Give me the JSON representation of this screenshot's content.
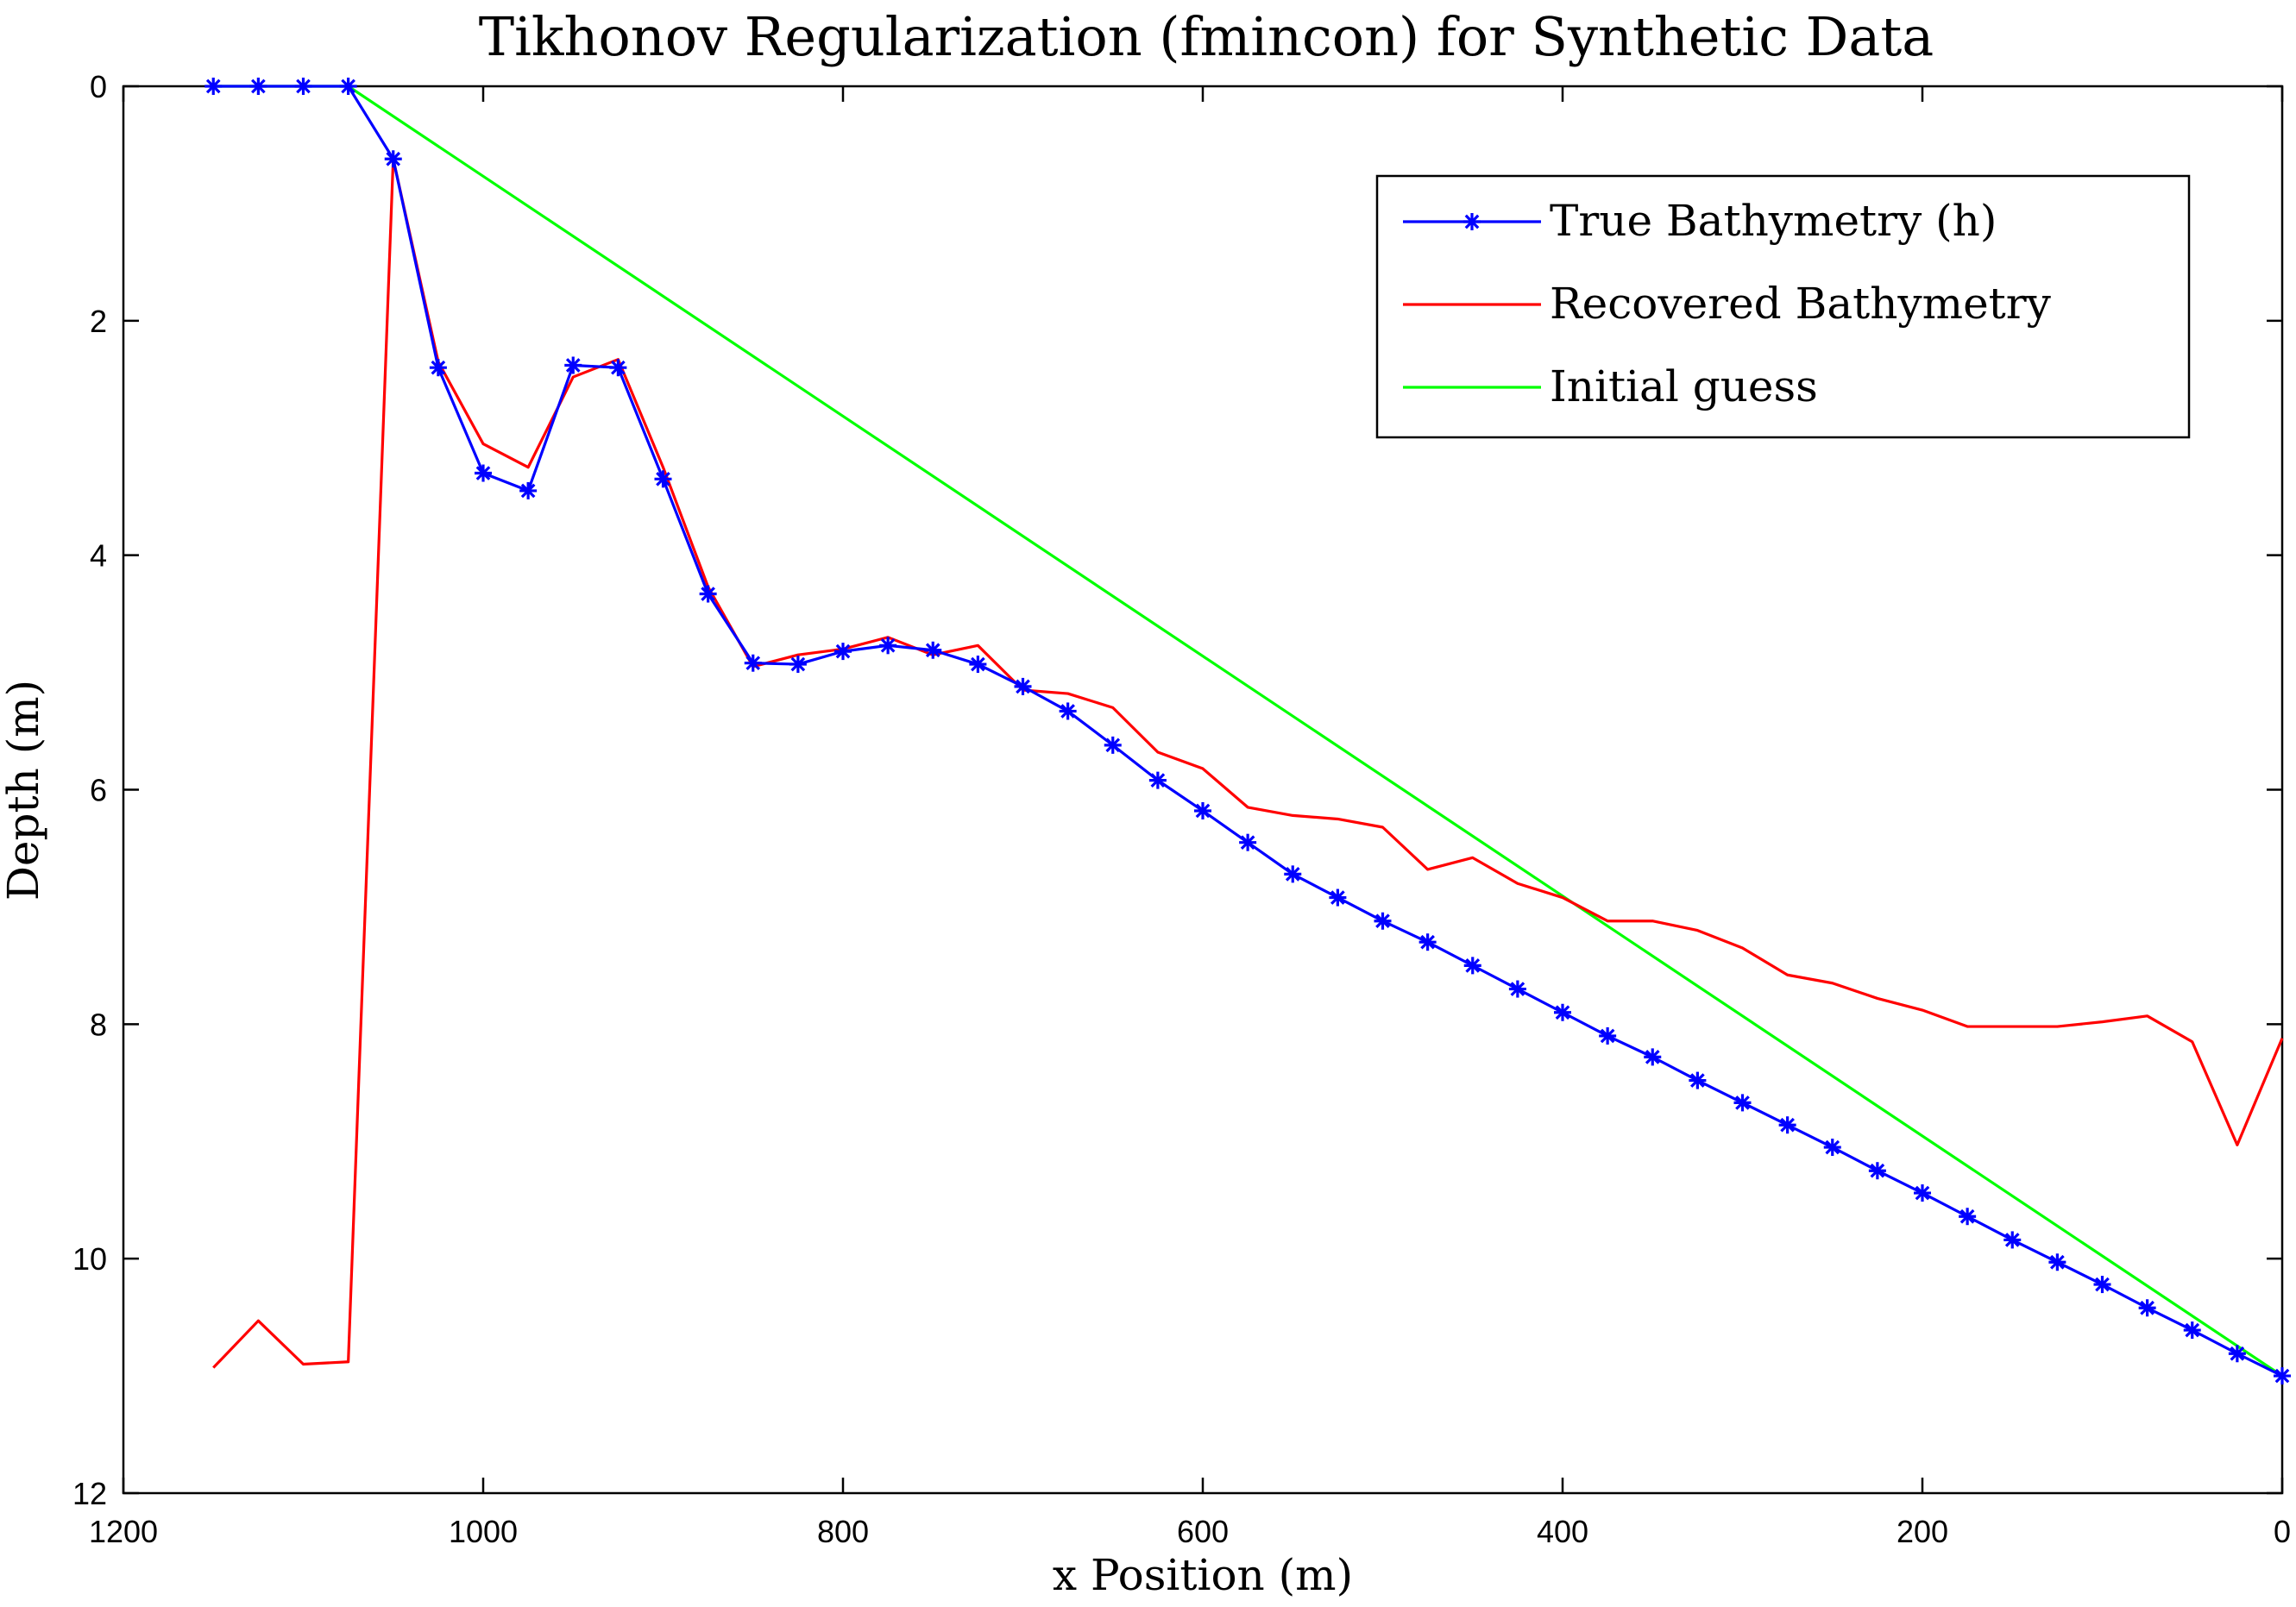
{
  "chart_data": {
    "type": "line",
    "title": "Tikhonov Regularization (fmincon) for Synthetic Data",
    "xlabel": "x Position (m)",
    "ylabel": "Depth (m)",
    "xlim": [
      0,
      1200
    ],
    "x_reversed": true,
    "ylim": [
      0,
      12
    ],
    "y_reversed": true,
    "xticks": [
      1200,
      1000,
      800,
      600,
      400,
      200,
      0
    ],
    "yticks": [
      0,
      2,
      4,
      6,
      8,
      10,
      12
    ],
    "grid": false,
    "legend_position": "top-right",
    "series": [
      {
        "name": "True Bathymetry (h)",
        "color": "#0000ff",
        "marker": "asterisk",
        "x": [
          1150,
          1125,
          1100,
          1075,
          1050,
          1025,
          1000,
          975,
          950,
          925,
          900,
          875,
          850,
          825,
          800,
          775,
          750,
          725,
          700,
          675,
          650,
          625,
          600,
          575,
          550,
          525,
          500,
          475,
          450,
          425,
          400,
          375,
          350,
          325,
          300,
          275,
          250,
          225,
          200,
          175,
          150,
          125,
          100,
          75,
          50,
          25,
          0
        ],
        "y": [
          0,
          0,
          0,
          0,
          0.62,
          2.4,
          3.3,
          3.45,
          2.38,
          2.4,
          3.35,
          4.33,
          4.92,
          4.93,
          4.82,
          4.77,
          4.81,
          4.93,
          5.12,
          5.33,
          5.62,
          5.92,
          6.18,
          6.45,
          6.72,
          6.92,
          7.12,
          7.3,
          7.5,
          7.7,
          7.9,
          8.1,
          8.28,
          8.48,
          8.67,
          8.86,
          9.05,
          9.25,
          9.44,
          9.64,
          9.84,
          10.03,
          10.22,
          10.42,
          10.61,
          10.81,
          11.0
        ]
      },
      {
        "name": "Recovered Bathymetry",
        "color": "#ff0000",
        "marker": "none",
        "x": [
          1150,
          1125,
          1100,
          1075,
          1050,
          1025,
          1000,
          975,
          950,
          925,
          900,
          875,
          850,
          825,
          800,
          775,
          750,
          725,
          700,
          675,
          650,
          625,
          600,
          575,
          550,
          525,
          500,
          475,
          450,
          425,
          400,
          375,
          350,
          325,
          300,
          275,
          250,
          225,
          200,
          175,
          150,
          125,
          100,
          75,
          50,
          25,
          0
        ],
        "y": [
          10.93,
          10.53,
          10.9,
          10.88,
          0.62,
          2.35,
          3.05,
          3.25,
          2.48,
          2.33,
          3.25,
          4.27,
          4.95,
          4.85,
          4.8,
          4.7,
          4.85,
          4.77,
          5.15,
          5.18,
          5.3,
          5.68,
          5.82,
          6.15,
          6.22,
          6.25,
          6.32,
          6.68,
          6.58,
          6.8,
          6.92,
          7.12,
          7.12,
          7.2,
          7.35,
          7.58,
          7.65,
          7.78,
          7.88,
          8.02,
          8.02,
          8.02,
          7.98,
          7.93,
          8.15,
          9.03,
          8.12
        ]
      },
      {
        "name": "Initial guess",
        "color": "#00ff00",
        "marker": "none",
        "x": [
          1150,
          1075,
          0
        ],
        "y": [
          0,
          0,
          11.0
        ]
      }
    ]
  }
}
